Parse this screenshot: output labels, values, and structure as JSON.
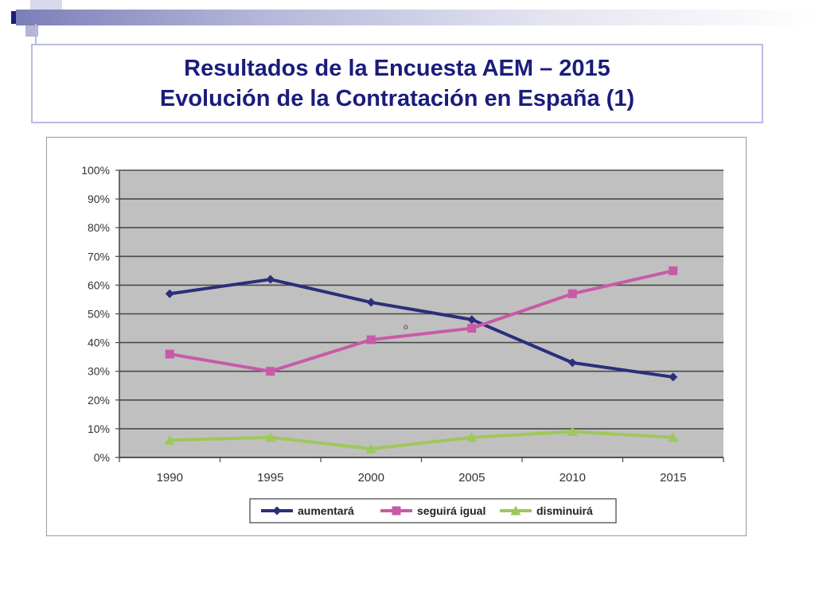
{
  "slide": {
    "title_line1": "Resultados de la Encuesta AEM – 2015",
    "title_line2": "Evolución de la Contratación en España (1)"
  },
  "colors": {
    "title": "#1a1d7a",
    "plot_background": "#c0c0c0",
    "aumentara": "#2b2e7a",
    "seguira_igual": "#c85aa8",
    "disminuira": "#9ec85a"
  },
  "chart_data": {
    "type": "line",
    "categories": [
      "1990",
      "1995",
      "2000",
      "2005",
      "2010",
      "2015"
    ],
    "yticks": [
      "0%",
      "10%",
      "20%",
      "30%",
      "40%",
      "50%",
      "60%",
      "70%",
      "80%",
      "90%",
      "100%"
    ],
    "ylim": [
      0,
      100
    ],
    "grid": true,
    "legend_position": "bottom",
    "annotation": "o",
    "series": [
      {
        "name": "aumentará",
        "values": [
          57,
          62,
          54,
          48,
          33,
          28
        ],
        "marker": "diamond"
      },
      {
        "name": "seguirá igual",
        "values": [
          36,
          30,
          41,
          45,
          57,
          65
        ],
        "marker": "square"
      },
      {
        "name": "disminuirá",
        "values": [
          6,
          7,
          3,
          7,
          9,
          7
        ],
        "marker": "triangle"
      }
    ]
  }
}
